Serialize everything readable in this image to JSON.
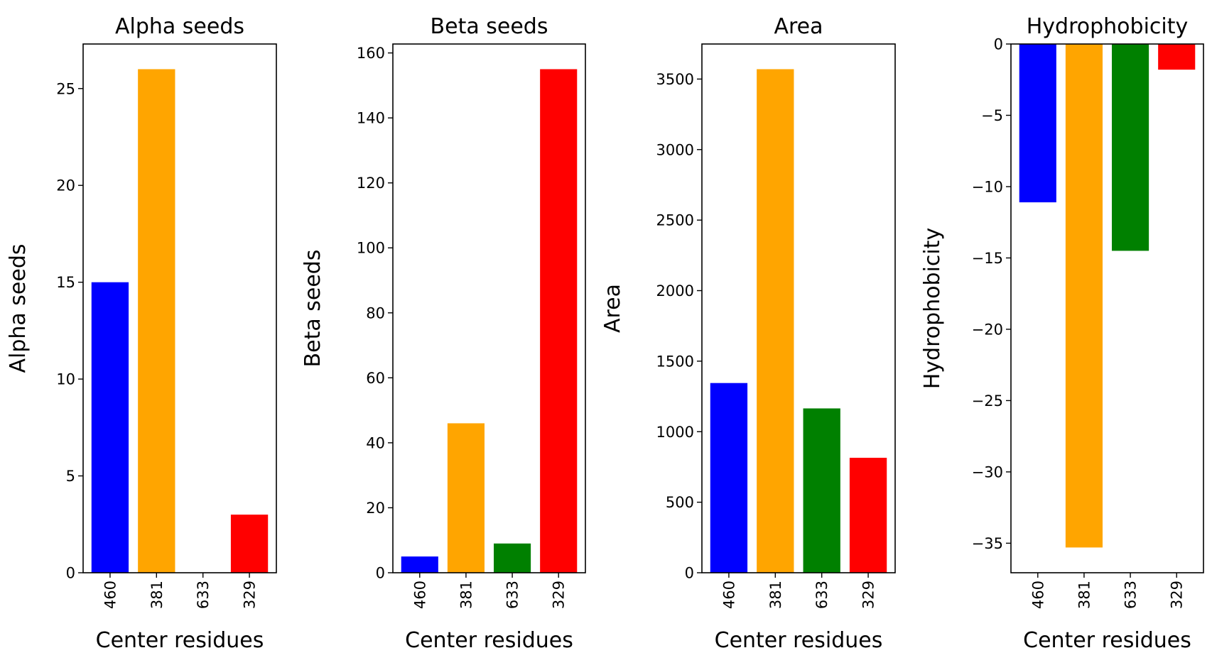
{
  "chart_data": [
    {
      "type": "bar",
      "title": "Alpha seeds",
      "xlabel": "Center residues",
      "ylabel": "Alpha seeds",
      "categories": [
        "460",
        "381",
        "633",
        "329"
      ],
      "values": [
        15,
        26,
        0,
        3
      ],
      "colors": [
        "#0000ff",
        "#ffa500",
        "#008000",
        "#ff0000"
      ],
      "ylim": [
        0,
        27.3
      ],
      "yticks": [
        0,
        5,
        10,
        15,
        20,
        25
      ],
      "ytick_labels": [
        "0",
        "5",
        "10",
        "15",
        "20",
        "25"
      ],
      "grid": false,
      "legend": "none"
    },
    {
      "type": "bar",
      "title": "Beta seeds",
      "xlabel": "Center residues",
      "ylabel": "Beta seeds",
      "categories": [
        "460",
        "381",
        "633",
        "329"
      ],
      "values": [
        5,
        46,
        9,
        155
      ],
      "colors": [
        "#0000ff",
        "#ffa500",
        "#008000",
        "#ff0000"
      ],
      "ylim": [
        0,
        162.75
      ],
      "yticks": [
        0,
        20,
        40,
        60,
        80,
        100,
        120,
        140,
        160
      ],
      "ytick_labels": [
        "0",
        "20",
        "40",
        "60",
        "80",
        "100",
        "120",
        "140",
        "160"
      ],
      "grid": false,
      "legend": "none"
    },
    {
      "type": "bar",
      "title": "Area",
      "xlabel": "Center residues",
      "ylabel": "Area",
      "categories": [
        "460",
        "381",
        "633",
        "329"
      ],
      "values": [
        1345,
        3570,
        1165,
        815
      ],
      "colors": [
        "#0000ff",
        "#ffa500",
        "#008000",
        "#ff0000"
      ],
      "ylim": [
        0,
        3748.5
      ],
      "yticks": [
        0,
        500,
        1000,
        1500,
        2000,
        2500,
        3000,
        3500
      ],
      "ytick_labels": [
        "0",
        "500",
        "1000",
        "1500",
        "2000",
        "2500",
        "3000",
        "3500"
      ],
      "grid": false,
      "legend": "none"
    },
    {
      "type": "bar",
      "title": "Hydrophobicity",
      "xlabel": "Center residues",
      "ylabel": "Hydrophobicity",
      "categories": [
        "460",
        "381",
        "633",
        "329"
      ],
      "values": [
        -11.1,
        -35.3,
        -14.5,
        -1.8
      ],
      "colors": [
        "#0000ff",
        "#ffa500",
        "#008000",
        "#ff0000"
      ],
      "ylim": [
        -37.07,
        0
      ],
      "yticks": [
        0,
        -5,
        -10,
        -15,
        -20,
        -25,
        -30,
        -35
      ],
      "ytick_labels": [
        "0",
        "−5",
        "−10",
        "−15",
        "−20",
        "−25",
        "−30",
        "−35"
      ],
      "grid": false,
      "legend": "none"
    }
  ]
}
